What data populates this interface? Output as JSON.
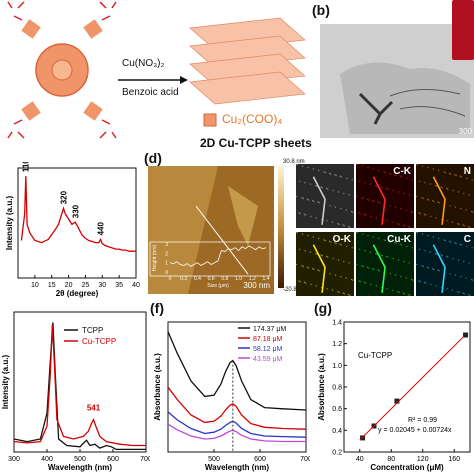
{
  "panel_labels": {
    "b": "(b)",
    "d": "(d)",
    "f": "(f)",
    "g": "(g)"
  },
  "scheme": {
    "reagent1": "Cu(NO₃)₂",
    "reagent2": "Benzoic acid",
    "node_label": "Cu₂(COO)₄",
    "product_label": "2D Cu-TCPP sheets",
    "colors": {
      "porphyrin": "#f0956a",
      "porphyrin_dark": "#d9643a",
      "sheet": "#f7c2a8",
      "acid_red": "#d22",
      "arrow": "#111"
    }
  },
  "tem": {
    "scale_label": "300"
  },
  "afm": {
    "colorbar_max": "30.8 nm",
    "colorbar_min": "-20.8 nm",
    "scale_label": "300 nm",
    "inset": {
      "ylabel": "Height (nm)",
      "xlabel": "Size (μm)",
      "xticks": [
        "0",
        "0.2",
        "0.4",
        "0.6",
        "0.8",
        "1.0",
        "1.2",
        "1.4"
      ],
      "yticks": [
        "3",
        "2",
        "1",
        "0"
      ],
      "profile": [
        [
          0,
          1.0
        ],
        [
          0.05,
          0.9
        ],
        [
          0.1,
          1.1
        ],
        [
          0.15,
          0.8
        ],
        [
          0.2,
          0.7
        ],
        [
          0.25,
          0.9
        ],
        [
          0.3,
          0.6
        ],
        [
          0.35,
          0.8
        ],
        [
          0.4,
          1.0
        ],
        [
          0.45,
          0.7
        ],
        [
          0.5,
          0.9
        ],
        [
          0.55,
          1.1
        ],
        [
          0.6,
          0.8
        ],
        [
          0.65,
          1.0
        ],
        [
          0.7,
          1.2
        ],
        [
          0.75,
          2.3
        ],
        [
          0.8,
          2.2
        ],
        [
          0.85,
          2.5
        ],
        [
          0.9,
          2.4
        ],
        [
          0.95,
          2.6
        ],
        [
          1.0,
          2.3
        ],
        [
          1.05,
          2.7
        ],
        [
          1.1,
          2.5
        ],
        [
          1.15,
          2.8
        ],
        [
          1.2,
          2.6
        ],
        [
          1.25,
          2.4
        ],
        [
          1.3,
          2.7
        ],
        [
          1.35,
          2.5
        ],
        [
          1.4,
          2.6
        ]
      ]
    }
  },
  "eds": {
    "maps": [
      {
        "label": "",
        "color": "#cccccc",
        "bg": "#2a2a2a"
      },
      {
        "label": "C-K",
        "color": "#ff2a2a",
        "bg": "#220000"
      },
      {
        "label": "N",
        "color": "#ff9a1a",
        "bg": "#231200"
      },
      {
        "label": "O-K",
        "color": "#ffe21a",
        "bg": "#202000"
      },
      {
        "label": "Cu-K",
        "color": "#2aff4a",
        "bg": "#002008"
      },
      {
        "label": "C",
        "color": "#2ad8ff",
        "bg": "#001a22"
      }
    ]
  },
  "chart_data": [
    {
      "panel": "c",
      "type": "line",
      "xlabel": "2θ (degree)",
      "ylabel": "Intensity (a.u.)",
      "xlim": [
        5,
        40
      ],
      "x_ticks": [
        "10",
        "15",
        "20",
        "25",
        "30",
        "35",
        "40"
      ],
      "peak_labels": [
        {
          "text": "110",
          "x": 7.2
        },
        {
          "text": "320",
          "x": 18.5
        },
        {
          "text": "330",
          "x": 22
        },
        {
          "text": "440",
          "x": 29.5
        }
      ],
      "series": [
        {
          "color": "#d40000",
          "x": [
            6,
            7,
            7.3,
            7.7,
            8.5,
            10,
            12,
            14,
            16,
            17,
            18,
            18.5,
            19,
            20,
            21,
            22,
            23,
            24,
            25,
            26,
            27,
            28,
            29,
            29.5,
            30,
            31,
            32,
            33,
            34,
            35,
            36,
            37,
            38,
            39,
            40
          ],
          "y": [
            0.35,
            0.6,
            0.95,
            0.5,
            0.42,
            0.35,
            0.33,
            0.36,
            0.45,
            0.5,
            0.6,
            0.65,
            0.6,
            0.55,
            0.5,
            0.52,
            0.46,
            0.4,
            0.37,
            0.35,
            0.34,
            0.33,
            0.33,
            0.36,
            0.32,
            0.3,
            0.29,
            0.28,
            0.27,
            0.27,
            0.26,
            0.26,
            0.25,
            0.25,
            0.25
          ]
        }
      ]
    },
    {
      "panel": "e",
      "type": "line",
      "xlabel": "Wavelength (nm)",
      "ylabel": "Intensity (a.u.)",
      "xlim": [
        300,
        700
      ],
      "x_ticks": [
        "300",
        "400",
        "500",
        "600",
        "700"
      ],
      "peak_labels": [
        {
          "text": "541",
          "x": 541
        }
      ],
      "series": [
        {
          "name": "TCPP",
          "color": "#111111",
          "x": [
            300,
            340,
            380,
            400,
            410,
            418,
            425,
            435,
            460,
            500,
            515,
            520,
            530,
            545,
            560,
            580,
            595,
            610,
            650,
            700
          ],
          "y": [
            0.1,
            0.08,
            0.1,
            0.3,
            0.7,
            1.0,
            0.6,
            0.1,
            0.05,
            0.04,
            0.08,
            0.09,
            0.05,
            0.06,
            0.03,
            0.05,
            0.04,
            0.02,
            0.02,
            0.02
          ]
        },
        {
          "name": "Cu-TCPP",
          "color": "#d40000",
          "x": [
            300,
            340,
            380,
            400,
            410,
            416,
            422,
            430,
            450,
            480,
            510,
            525,
            535,
            541,
            548,
            560,
            580,
            620,
            660,
            700
          ],
          "y": [
            0.08,
            0.07,
            0.08,
            0.2,
            0.6,
            0.98,
            0.7,
            0.25,
            0.12,
            0.1,
            0.12,
            0.16,
            0.22,
            0.25,
            0.2,
            0.12,
            0.08,
            0.06,
            0.05,
            0.05
          ]
        }
      ]
    },
    {
      "panel": "f",
      "type": "line",
      "xlabel": "Wavelength (nm)",
      "ylabel": "Absorbance (a.u.)",
      "xlim": [
        400,
        700
      ],
      "x_ticks": [
        "500",
        "600",
        "700"
      ],
      "series": [
        {
          "name": "174.37 μM",
          "color": "#111111",
          "x": [
            400,
            420,
            450,
            480,
            500,
            515,
            525,
            535,
            541,
            548,
            560,
            580,
            610,
            650,
            700
          ],
          "y": [
            1.95,
            1.6,
            1.15,
            0.9,
            0.92,
            1.1,
            1.3,
            1.45,
            1.48,
            1.4,
            1.15,
            0.85,
            0.72,
            0.7,
            0.68
          ]
        },
        {
          "name": "87.18 μM",
          "color": "#d40000",
          "x": [
            400,
            420,
            450,
            480,
            500,
            515,
            525,
            535,
            541,
            548,
            560,
            580,
            610,
            650,
            700
          ],
          "y": [
            1.05,
            0.85,
            0.6,
            0.48,
            0.5,
            0.58,
            0.68,
            0.76,
            0.78,
            0.74,
            0.6,
            0.46,
            0.4,
            0.38,
            0.37
          ]
        },
        {
          "name": "58.12 μM",
          "color": "#2a34c8",
          "x": [
            400,
            420,
            450,
            480,
            500,
            515,
            525,
            535,
            541,
            548,
            560,
            580,
            610,
            650,
            700
          ],
          "y": [
            0.65,
            0.52,
            0.38,
            0.3,
            0.32,
            0.37,
            0.43,
            0.48,
            0.5,
            0.47,
            0.38,
            0.3,
            0.26,
            0.25,
            0.24
          ]
        },
        {
          "name": "43.59 μM",
          "color": "#c04ad8",
          "x": [
            400,
            420,
            450,
            480,
            500,
            515,
            525,
            535,
            541,
            548,
            560,
            580,
            610,
            650,
            700
          ],
          "y": [
            0.45,
            0.36,
            0.26,
            0.21,
            0.22,
            0.26,
            0.3,
            0.34,
            0.35,
            0.33,
            0.27,
            0.21,
            0.18,
            0.17,
            0.17
          ]
        }
      ]
    },
    {
      "panel": "g",
      "type": "scatter",
      "xlabel": "Concentration (μM)",
      "ylabel": "Absorbance (a.u.)",
      "xlim": [
        20,
        180
      ],
      "ylim": [
        0.2,
        1.4
      ],
      "x_ticks": [
        "40",
        "80",
        "120",
        "160"
      ],
      "y_ticks": [
        "0.2",
        "0.4",
        "0.6",
        "0.8",
        "1.0",
        "1.2",
        "1.4"
      ],
      "inset_label": "Cu-TCPP",
      "r2_label": "R² = 0.99",
      "fit_label": "y = 0.02045 + 0.00724x",
      "fit": {
        "intercept": 0.02045,
        "slope": 0.00724
      },
      "series": [
        {
          "color": "#222222",
          "x": [
            43.59,
            58.12,
            87.18,
            174.37
          ],
          "y": [
            0.33,
            0.44,
            0.67,
            1.28
          ]
        }
      ]
    }
  ]
}
